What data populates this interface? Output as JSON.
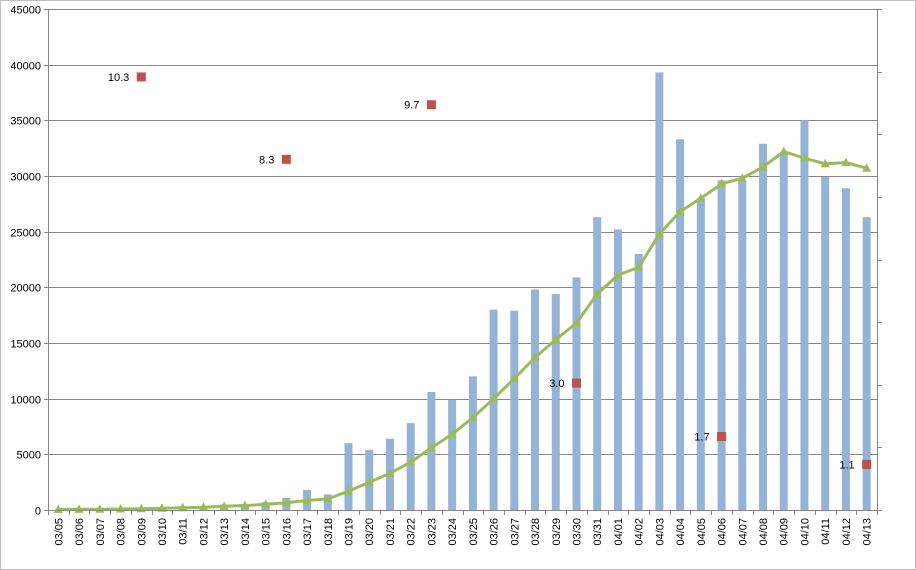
{
  "chart_data": {
    "type": "bar",
    "title": "",
    "xlabel": "",
    "ylabel": "",
    "ylim": [
      0,
      45000
    ],
    "yticks": [
      0,
      5000,
      10000,
      15000,
      20000,
      25000,
      30000,
      35000,
      40000,
      45000
    ],
    "grid": true,
    "legend": "none",
    "categories": [
      "03/05",
      "03/06",
      "03/07",
      "03/08",
      "03/09",
      "03/10",
      "03/11",
      "03/12",
      "03/13",
      "03/14",
      "03/15",
      "03/16",
      "03/17",
      "03/18",
      "03/19",
      "03/20",
      "03/21",
      "03/22",
      "03/23",
      "03/24",
      "03/25",
      "03/26",
      "03/27",
      "03/28",
      "03/29",
      "03/30",
      "03/31",
      "04/01",
      "04/02",
      "04/03",
      "04/04",
      "04/05",
      "04/06",
      "04/07",
      "04/08",
      "04/09",
      "04/10",
      "04/11",
      "04/12",
      "04/13"
    ],
    "series": [
      {
        "type": "bar",
        "color": "#95b3d7",
        "values": [
          30,
          50,
          60,
          80,
          100,
          200,
          250,
          300,
          500,
          400,
          700,
          1100,
          1800,
          1400,
          6000,
          5400,
          6400,
          7800,
          10600,
          9900,
          12000,
          18000,
          17900,
          19800,
          19400,
          20900,
          26300,
          25200,
          23000,
          39300,
          33300,
          28000,
          29600,
          29500,
          32900,
          32000,
          35000,
          29900,
          28900,
          26300
        ]
      },
      {
        "type": "line",
        "color": "#9bbb59",
        "marker": "triangle",
        "values": [
          50,
          60,
          70,
          90,
          110,
          160,
          200,
          250,
          330,
          400,
          500,
          650,
          850,
          1000,
          1700,
          2500,
          3300,
          4300,
          5600,
          6800,
          8300,
          10000,
          11800,
          13700,
          15300,
          16800,
          19400,
          21100,
          21800,
          24800,
          26800,
          28000,
          29300,
          29800,
          30800,
          32200,
          31600,
          31100,
          31200,
          30700
        ]
      },
      {
        "type": "scatter",
        "color": "#c0504d",
        "marker": "square",
        "points": [
          {
            "x": "03/09",
            "y": 38900,
            "label": "10.3"
          },
          {
            "x": "03/16",
            "y": 31500,
            "label": "8.3"
          },
          {
            "x": "03/23",
            "y": 36400,
            "label": "9.7"
          },
          {
            "x": "03/30",
            "y": 11400,
            "label": "3.0"
          },
          {
            "x": "04/06",
            "y": 6600,
            "label": "1.7"
          },
          {
            "x": "04/13",
            "y": 4100,
            "label": "1.1"
          }
        ]
      }
    ],
    "secondary_axis": {
      "side": "right",
      "tick_count": 8,
      "labels_visible": false
    }
  }
}
